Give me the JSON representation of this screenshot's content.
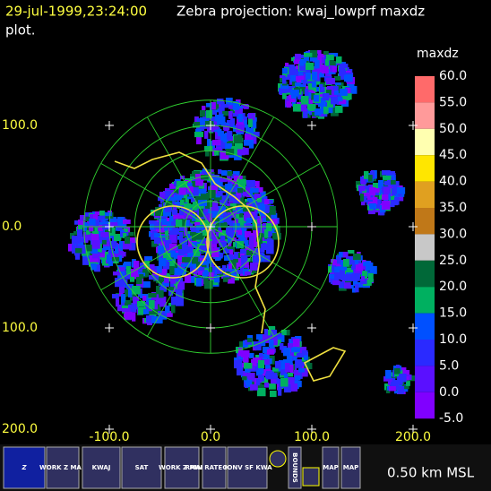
{
  "header": {
    "timestamp": "29-jul-1999,23:24:00",
    "title": "Zebra projection: kwaj_lowprf maxdz",
    "title_cont": "plot."
  },
  "plot": {
    "y_labels": [
      "100.0",
      "0.0",
      "100.0",
      "200.0"
    ],
    "x_labels": [
      "-100.0",
      "0.0",
      "100.0",
      "200.0"
    ]
  },
  "colorbar": {
    "title": "maxdz",
    "labels": [
      "60.0",
      "55.0",
      "50.0",
      "45.0",
      "40.0",
      "35.0",
      "30.0",
      "25.0",
      "20.0",
      "15.0",
      "10.0",
      "5.0",
      "0.0",
      "-5.0"
    ],
    "colors": [
      "#ff6a6a",
      "#ff9a9a",
      "#ffffb0",
      "#ffe600",
      "#e0a020",
      "#c07818",
      "#c8c8c8",
      "#006838",
      "#00b060",
      "#0050ff",
      "#2a2aff",
      "#5a10ff",
      "#8000ff"
    ]
  },
  "toolbar": {
    "buttons": [
      {
        "label": "Z"
      },
      {
        "label": "WORK Z MAP"
      },
      {
        "label": "KWAJ"
      },
      {
        "label": "SAT"
      },
      {
        "label": "WORK Z MAP"
      },
      {
        "label": "RAIN RATE KWAJ"
      },
      {
        "label": "CONV SF KWA"
      },
      {
        "label": "BOUNDS"
      },
      {
        "label": "MAP"
      },
      {
        "label": "MAP"
      }
    ],
    "status": "0.50 km MSL"
  }
}
